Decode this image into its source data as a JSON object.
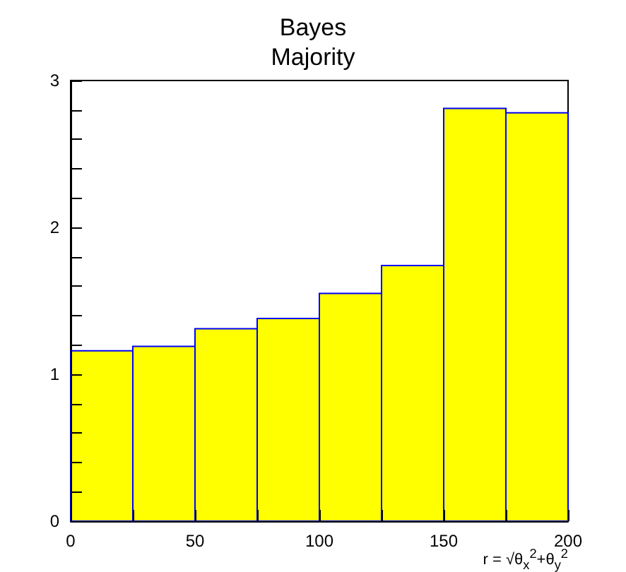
{
  "chart_data": {
    "type": "histogram",
    "title": "Bayes",
    "subtitle": "Majority",
    "xlabel": "r = √θ$_{x}$$^{2}$+θ$_{y}$$^{2}$",
    "bins": [
      0,
      25,
      50,
      75,
      100,
      125,
      150,
      175,
      200
    ],
    "values": [
      1.16,
      1.19,
      1.31,
      1.38,
      1.55,
      1.74,
      2.81,
      2.78
    ],
    "color": "#ffff00",
    "xlim": [
      0,
      200
    ],
    "xticks": [
      0,
      {
        "value": 25,
        "label": null
      },
      50,
      {
        "value": 75,
        "label": null
      },
      100,
      {
        "value": 125,
        "label": null
      },
      150,
      {
        "value": 175,
        "label": null
      },
      200
    ],
    "ylim": [
      0,
      3
    ],
    "yticks": [
      0,
      {
        "value": 0.2,
        "label": null
      },
      {
        "value": 0.4,
        "label": null
      },
      {
        "value": 0.6,
        "label": null
      },
      {
        "value": 0.8,
        "label": null
      },
      1,
      {
        "value": 1.2,
        "label": null
      },
      {
        "value": 1.4,
        "label": null
      },
      {
        "value": 1.6,
        "label": null
      },
      {
        "value": 1.8,
        "label": null
      },
      2,
      {
        "value": 2.2,
        "label": null
      },
      {
        "value": 2.4,
        "label": null
      },
      {
        "value": 2.6,
        "label": null
      },
      {
        "value": 2.8,
        "label": null
      },
      3
    ],
    "grid": false
  }
}
